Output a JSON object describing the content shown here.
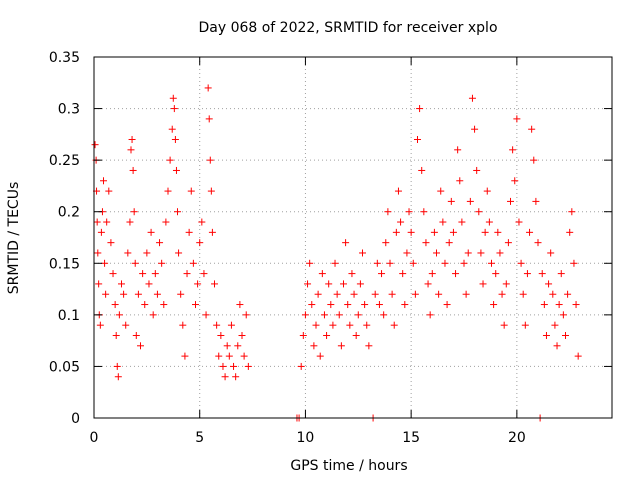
{
  "chart_data": {
    "type": "scatter",
    "title": "Day 068 of 2022, SRMTID for receiver xplo",
    "xlabel": "GPS time / hours",
    "ylabel": "SRMTID / TECUs",
    "xlim": [
      0,
      24.5
    ],
    "ylim": [
      0,
      0.35
    ],
    "xticks": [
      0,
      5,
      10,
      15,
      20
    ],
    "xtick_labels": [
      "0",
      "5",
      "10",
      "15",
      "20"
    ],
    "yticks": [
      0,
      0.05,
      0.1,
      0.15,
      0.2,
      0.25,
      0.3,
      0.35
    ],
    "ytick_labels": [
      "0",
      "0.05",
      "0.1",
      "0.15",
      "0.2",
      "0.25",
      "0.3",
      "0.35"
    ],
    "grid": true,
    "marker": "+",
    "series": [
      {
        "name": "SRMTID",
        "color": "#ff0000",
        "points": [
          [
            0.05,
            0.265
          ],
          [
            0.1,
            0.25
          ],
          [
            0.12,
            0.22
          ],
          [
            0.15,
            0.19
          ],
          [
            0.18,
            0.16
          ],
          [
            0.22,
            0.13
          ],
          [
            0.25,
            0.1
          ],
          [
            0.3,
            0.09
          ],
          [
            0.35,
            0.18
          ],
          [
            0.4,
            0.2
          ],
          [
            0.45,
            0.23
          ],
          [
            0.5,
            0.15
          ],
          [
            0.55,
            0.12
          ],
          [
            0.6,
            0.19
          ],
          [
            0.7,
            0.22
          ],
          [
            0.8,
            0.17
          ],
          [
            0.9,
            0.14
          ],
          [
            1.0,
            0.11
          ],
          [
            1.05,
            0.08
          ],
          [
            1.1,
            0.05
          ],
          [
            1.15,
            0.04
          ],
          [
            1.2,
            0.1
          ],
          [
            1.3,
            0.13
          ],
          [
            1.4,
            0.12
          ],
          [
            1.5,
            0.09
          ],
          [
            1.6,
            0.16
          ],
          [
            1.7,
            0.19
          ],
          [
            1.75,
            0.26
          ],
          [
            1.8,
            0.27
          ],
          [
            1.85,
            0.24
          ],
          [
            1.9,
            0.2
          ],
          [
            1.95,
            0.15
          ],
          [
            2.0,
            0.08
          ],
          [
            2.1,
            0.12
          ],
          [
            2.2,
            0.07
          ],
          [
            2.3,
            0.14
          ],
          [
            2.4,
            0.11
          ],
          [
            2.5,
            0.16
          ],
          [
            2.6,
            0.13
          ],
          [
            2.7,
            0.18
          ],
          [
            2.8,
            0.1
          ],
          [
            2.9,
            0.14
          ],
          [
            3.0,
            0.12
          ],
          [
            3.1,
            0.17
          ],
          [
            3.2,
            0.15
          ],
          [
            3.3,
            0.11
          ],
          [
            3.4,
            0.19
          ],
          [
            3.5,
            0.22
          ],
          [
            3.6,
            0.25
          ],
          [
            3.7,
            0.28
          ],
          [
            3.75,
            0.31
          ],
          [
            3.8,
            0.3
          ],
          [
            3.85,
            0.27
          ],
          [
            3.9,
            0.24
          ],
          [
            3.95,
            0.2
          ],
          [
            4.0,
            0.16
          ],
          [
            4.1,
            0.12
          ],
          [
            4.2,
            0.09
          ],
          [
            4.3,
            0.06
          ],
          [
            4.4,
            0.14
          ],
          [
            4.5,
            0.18
          ],
          [
            4.6,
            0.22
          ],
          [
            4.7,
            0.15
          ],
          [
            4.8,
            0.11
          ],
          [
            4.9,
            0.13
          ],
          [
            5.0,
            0.17
          ],
          [
            5.1,
            0.19
          ],
          [
            5.2,
            0.14
          ],
          [
            5.3,
            0.1
          ],
          [
            5.4,
            0.32
          ],
          [
            5.45,
            0.29
          ],
          [
            5.5,
            0.25
          ],
          [
            5.55,
            0.22
          ],
          [
            5.6,
            0.18
          ],
          [
            5.7,
            0.13
          ],
          [
            5.8,
            0.09
          ],
          [
            5.9,
            0.06
          ],
          [
            6.0,
            0.08
          ],
          [
            6.1,
            0.05
          ],
          [
            6.2,
            0.04
          ],
          [
            6.3,
            0.07
          ],
          [
            6.4,
            0.06
          ],
          [
            6.5,
            0.09
          ],
          [
            6.6,
            0.05
          ],
          [
            6.7,
            0.04
          ],
          [
            6.8,
            0.07
          ],
          [
            6.9,
            0.11
          ],
          [
            7.0,
            0.08
          ],
          [
            7.1,
            0.06
          ],
          [
            7.2,
            0.1
          ],
          [
            7.3,
            0.05
          ],
          [
            9.6,
            0.0
          ],
          [
            9.7,
            0.0
          ],
          [
            9.8,
            0.05
          ],
          [
            9.9,
            0.08
          ],
          [
            10.0,
            0.1
          ],
          [
            10.1,
            0.13
          ],
          [
            10.2,
            0.15
          ],
          [
            10.3,
            0.11
          ],
          [
            10.4,
            0.07
          ],
          [
            10.5,
            0.09
          ],
          [
            10.6,
            0.12
          ],
          [
            10.7,
            0.06
          ],
          [
            10.8,
            0.14
          ],
          [
            10.9,
            0.1
          ],
          [
            11.0,
            0.08
          ],
          [
            11.1,
            0.13
          ],
          [
            11.2,
            0.11
          ],
          [
            11.3,
            0.09
          ],
          [
            11.4,
            0.15
          ],
          [
            11.5,
            0.12
          ],
          [
            11.6,
            0.1
          ],
          [
            11.7,
            0.07
          ],
          [
            11.8,
            0.13
          ],
          [
            11.9,
            0.17
          ],
          [
            12.0,
            0.11
          ],
          [
            12.1,
            0.09
          ],
          [
            12.2,
            0.14
          ],
          [
            12.3,
            0.12
          ],
          [
            12.4,
            0.08
          ],
          [
            12.5,
            0.1
          ],
          [
            12.6,
            0.13
          ],
          [
            12.7,
            0.16
          ],
          [
            12.8,
            0.11
          ],
          [
            12.9,
            0.09
          ],
          [
            13.0,
            0.07
          ],
          [
            13.2,
            0.0
          ],
          [
            13.3,
            0.12
          ],
          [
            13.4,
            0.15
          ],
          [
            13.5,
            0.11
          ],
          [
            13.6,
            0.14
          ],
          [
            13.7,
            0.1
          ],
          [
            13.8,
            0.17
          ],
          [
            13.9,
            0.2
          ],
          [
            14.0,
            0.15
          ],
          [
            14.1,
            0.12
          ],
          [
            14.2,
            0.09
          ],
          [
            14.3,
            0.18
          ],
          [
            14.4,
            0.22
          ],
          [
            14.5,
            0.19
          ],
          [
            14.6,
            0.14
          ],
          [
            14.7,
            0.11
          ],
          [
            14.8,
            0.16
          ],
          [
            14.9,
            0.2
          ],
          [
            15.0,
            0.18
          ],
          [
            15.1,
            0.15
          ],
          [
            15.2,
            0.12
          ],
          [
            15.3,
            0.27
          ],
          [
            15.4,
            0.3
          ],
          [
            15.5,
            0.24
          ],
          [
            15.6,
            0.2
          ],
          [
            15.7,
            0.17
          ],
          [
            15.8,
            0.13
          ],
          [
            15.9,
            0.1
          ],
          [
            16.0,
            0.14
          ],
          [
            16.1,
            0.18
          ],
          [
            16.2,
            0.16
          ],
          [
            16.3,
            0.12
          ],
          [
            16.4,
            0.22
          ],
          [
            16.5,
            0.19
          ],
          [
            16.6,
            0.15
          ],
          [
            16.7,
            0.11
          ],
          [
            16.8,
            0.17
          ],
          [
            16.9,
            0.21
          ],
          [
            17.0,
            0.18
          ],
          [
            17.1,
            0.14
          ],
          [
            17.2,
            0.26
          ],
          [
            17.3,
            0.23
          ],
          [
            17.4,
            0.19
          ],
          [
            17.5,
            0.15
          ],
          [
            17.6,
            0.12
          ],
          [
            17.7,
            0.16
          ],
          [
            17.8,
            0.21
          ],
          [
            17.9,
            0.31
          ],
          [
            18.0,
            0.28
          ],
          [
            18.1,
            0.24
          ],
          [
            18.2,
            0.2
          ],
          [
            18.3,
            0.16
          ],
          [
            18.4,
            0.13
          ],
          [
            18.5,
            0.18
          ],
          [
            18.6,
            0.22
          ],
          [
            18.7,
            0.19
          ],
          [
            18.8,
            0.15
          ],
          [
            18.9,
            0.11
          ],
          [
            19.0,
            0.14
          ],
          [
            19.1,
            0.18
          ],
          [
            19.2,
            0.16
          ],
          [
            19.3,
            0.12
          ],
          [
            19.4,
            0.09
          ],
          [
            19.5,
            0.13
          ],
          [
            19.6,
            0.17
          ],
          [
            19.7,
            0.21
          ],
          [
            19.8,
            0.26
          ],
          [
            19.9,
            0.23
          ],
          [
            20.0,
            0.29
          ],
          [
            20.1,
            0.19
          ],
          [
            20.2,
            0.15
          ],
          [
            20.3,
            0.12
          ],
          [
            20.4,
            0.09
          ],
          [
            20.5,
            0.14
          ],
          [
            20.6,
            0.18
          ],
          [
            20.7,
            0.28
          ],
          [
            20.8,
            0.25
          ],
          [
            20.9,
            0.21
          ],
          [
            21.0,
            0.17
          ],
          [
            21.1,
            0.0
          ],
          [
            21.2,
            0.14
          ],
          [
            21.3,
            0.11
          ],
          [
            21.4,
            0.08
          ],
          [
            21.5,
            0.13
          ],
          [
            21.6,
            0.16
          ],
          [
            21.7,
            0.12
          ],
          [
            21.8,
            0.09
          ],
          [
            21.9,
            0.07
          ],
          [
            22.0,
            0.11
          ],
          [
            22.1,
            0.14
          ],
          [
            22.2,
            0.1
          ],
          [
            22.3,
            0.08
          ],
          [
            22.4,
            0.12
          ],
          [
            22.5,
            0.18
          ],
          [
            22.6,
            0.2
          ],
          [
            22.7,
            0.15
          ],
          [
            22.8,
            0.11
          ],
          [
            22.9,
            0.06
          ]
        ]
      }
    ]
  }
}
